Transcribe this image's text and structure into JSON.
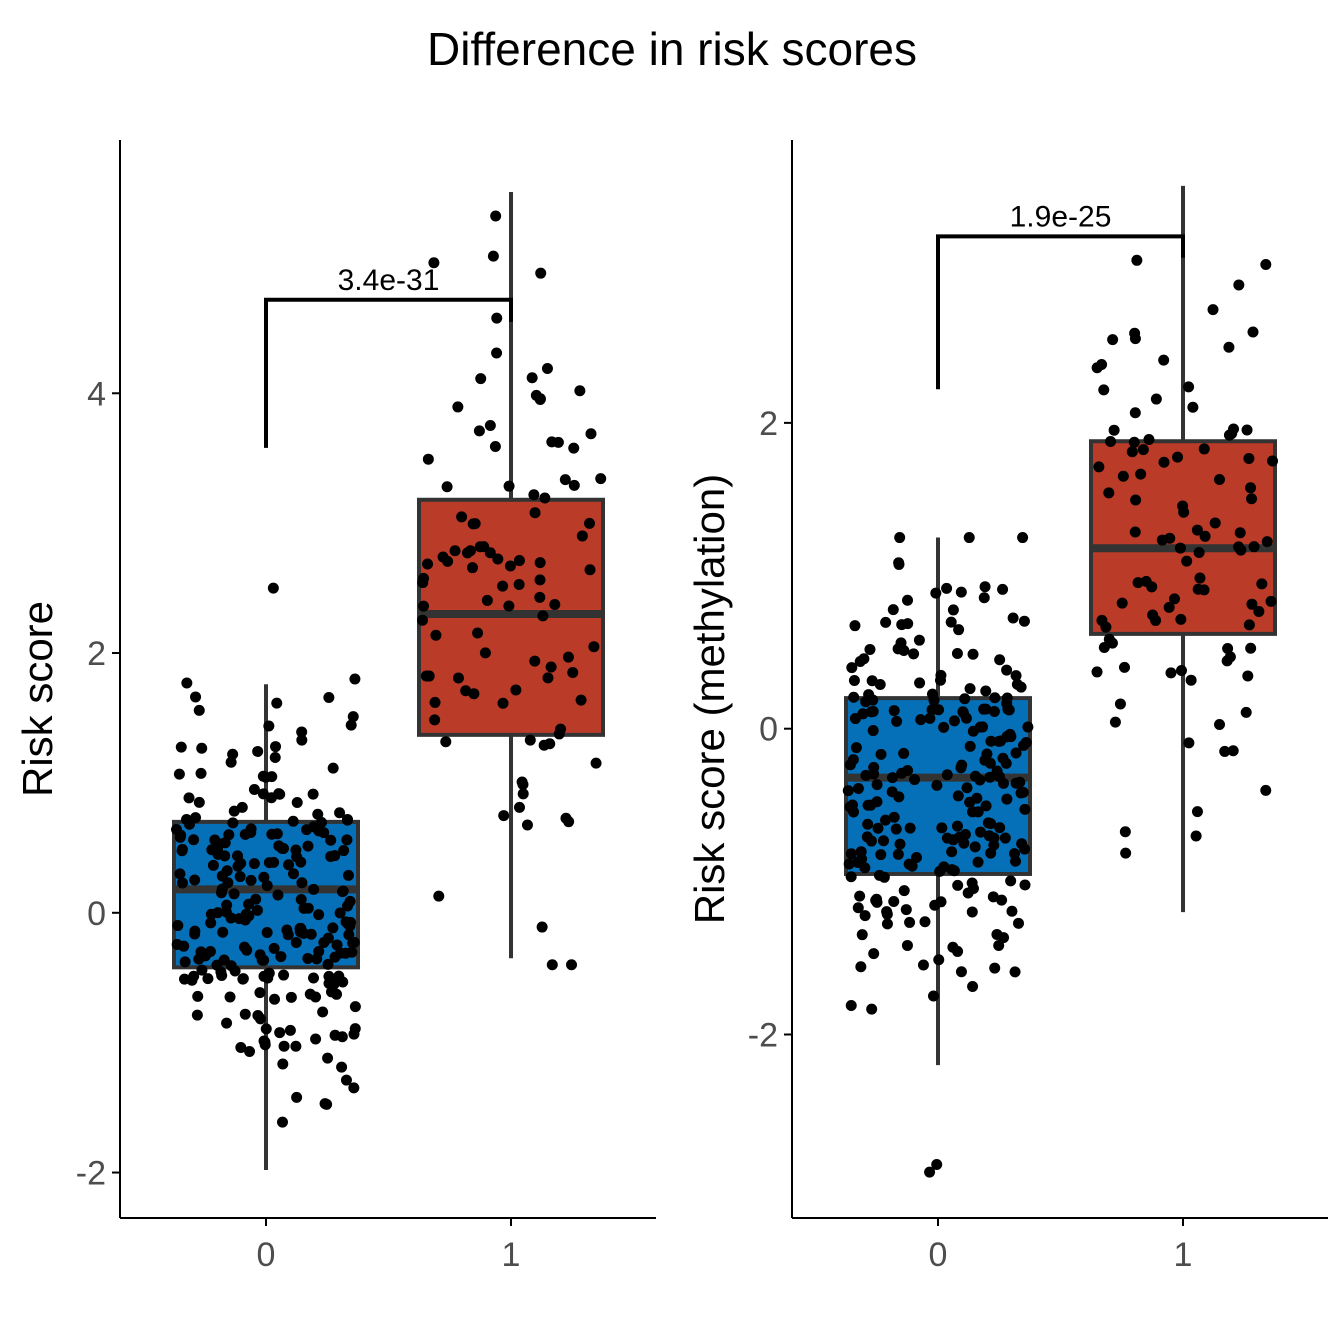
{
  "figure": {
    "title": "Difference in risk scores"
  },
  "colors": {
    "group0": "#0570B8",
    "group1": "#B93B28",
    "box_line": "#333333",
    "point": "#000000",
    "axis": "#000000",
    "tick_text": "#4d4d4d"
  },
  "chart_data": [
    {
      "type": "box",
      "title": "",
      "xlabel": "",
      "ylabel": "Risk score",
      "categories": [
        "0",
        "1"
      ],
      "yticks": [
        -2,
        0,
        2,
        4
      ],
      "ylim": [
        -2.35,
        5.95
      ],
      "boxes": [
        {
          "group": "0",
          "min": -1.98,
          "q1": -0.42,
          "median": 0.18,
          "q3": 0.7,
          "max": 1.76,
          "outliers": [
            2.5
          ]
        },
        {
          "group": "1",
          "min": -0.35,
          "q1": 1.37,
          "median": 2.3,
          "q3": 3.18,
          "max": 5.55,
          "outliers": []
        }
      ],
      "points": {
        "0": {
          "n": 240,
          "seed": 11,
          "mean": 0.15,
          "sd": 0.7,
          "clip": [
            -2.0,
            1.8
          ]
        },
        "1": {
          "n": 100,
          "seed": 23,
          "mean": 2.3,
          "sd": 1.25,
          "clip": [
            -0.4,
            5.6
          ]
        }
      },
      "comparison": {
        "label": "3.4e-31",
        "y_left": 3.58,
        "y_top": 4.72,
        "y_right": 4.55
      }
    },
    {
      "type": "box",
      "title": "",
      "xlabel": "",
      "ylabel": "Risk score (methylation)",
      "categories": [
        "0",
        "1"
      ],
      "yticks": [
        -2,
        0,
        2
      ],
      "ylim": [
        -3.2,
        3.85
      ],
      "boxes": [
        {
          "group": "0",
          "min": -2.2,
          "q1": -0.95,
          "median": -0.32,
          "q3": 0.2,
          "max": 1.25,
          "outliers": [
            -2.85,
            -2.9
          ]
        },
        {
          "group": "1",
          "min": -1.2,
          "q1": 0.62,
          "median": 1.18,
          "q3": 1.88,
          "max": 3.55,
          "outliers": []
        }
      ],
      "points": {
        "0": {
          "n": 240,
          "seed": 37,
          "mean": -0.35,
          "sd": 0.7,
          "clip": [
            -2.2,
            1.25
          ]
        },
        "1": {
          "n": 100,
          "seed": 53,
          "mean": 1.2,
          "sd": 0.95,
          "clip": [
            -1.2,
            3.55
          ]
        }
      },
      "comparison": {
        "label": "1.9e-25",
        "y_left": 2.22,
        "y_top": 3.22,
        "y_right": 3.08
      }
    }
  ]
}
